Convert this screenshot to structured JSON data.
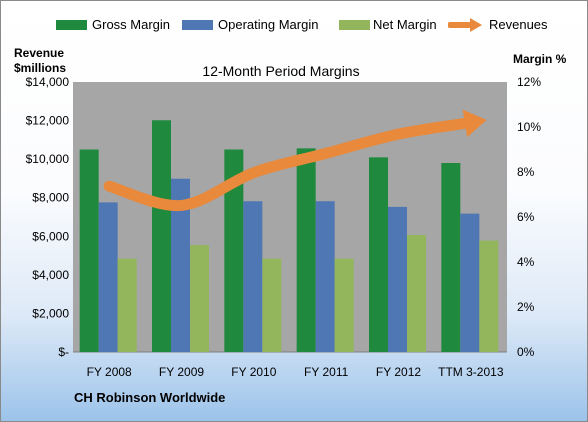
{
  "legend": {
    "gross": "Gross Margin",
    "operating": "Operating Margin",
    "net": "Net Margin",
    "revenues": "Revenues"
  },
  "left_axis_title": [
    "Revenue",
    "$millions"
  ],
  "right_axis_title": "Margin %",
  "company": "CH Robinson Worldwide",
  "colors": {
    "gross": "#1f8a3d",
    "operating": "#4f77b3",
    "net": "#93b65c",
    "revenues": "#e8893b",
    "plot_bg": "#a6a6a6"
  },
  "chart_data": {
    "type": "bar",
    "title": "12-Month Period Margins",
    "categories": [
      "FY 2008",
      "FY 2009",
      "FY 2010",
      "FY 2011",
      "FY 2012",
      "TTM 3-2013"
    ],
    "series": [
      {
        "name": "Gross Margin",
        "axis": "right",
        "values": [
          9.0,
          10.3,
          9.0,
          9.05,
          8.65,
          8.4
        ]
      },
      {
        "name": "Operating Margin",
        "axis": "right",
        "values": [
          6.65,
          7.7,
          6.7,
          6.7,
          6.45,
          6.15
        ]
      },
      {
        "name": "Net Margin",
        "axis": "right",
        "values": [
          4.15,
          4.75,
          4.15,
          4.15,
          5.2,
          4.95
        ]
      },
      {
        "name": "Revenues",
        "axis": "left",
        "type": "line",
        "values": [
          8600,
          7600,
          9300,
          10300,
          11300,
          11900
        ]
      }
    ],
    "left_axis": {
      "ylim": [
        0,
        14000
      ],
      "ticks": [
        "$-",
        "$2,000",
        "$4,000",
        "$6,000",
        "$8,000",
        "$10,000",
        "$12,000",
        "$14,000"
      ]
    },
    "right_axis": {
      "ylim": [
        0,
        12
      ],
      "ticks": [
        "0%",
        "2%",
        "4%",
        "6%",
        "8%",
        "10%",
        "12%"
      ]
    },
    "grid": false,
    "legend_position": "top"
  }
}
